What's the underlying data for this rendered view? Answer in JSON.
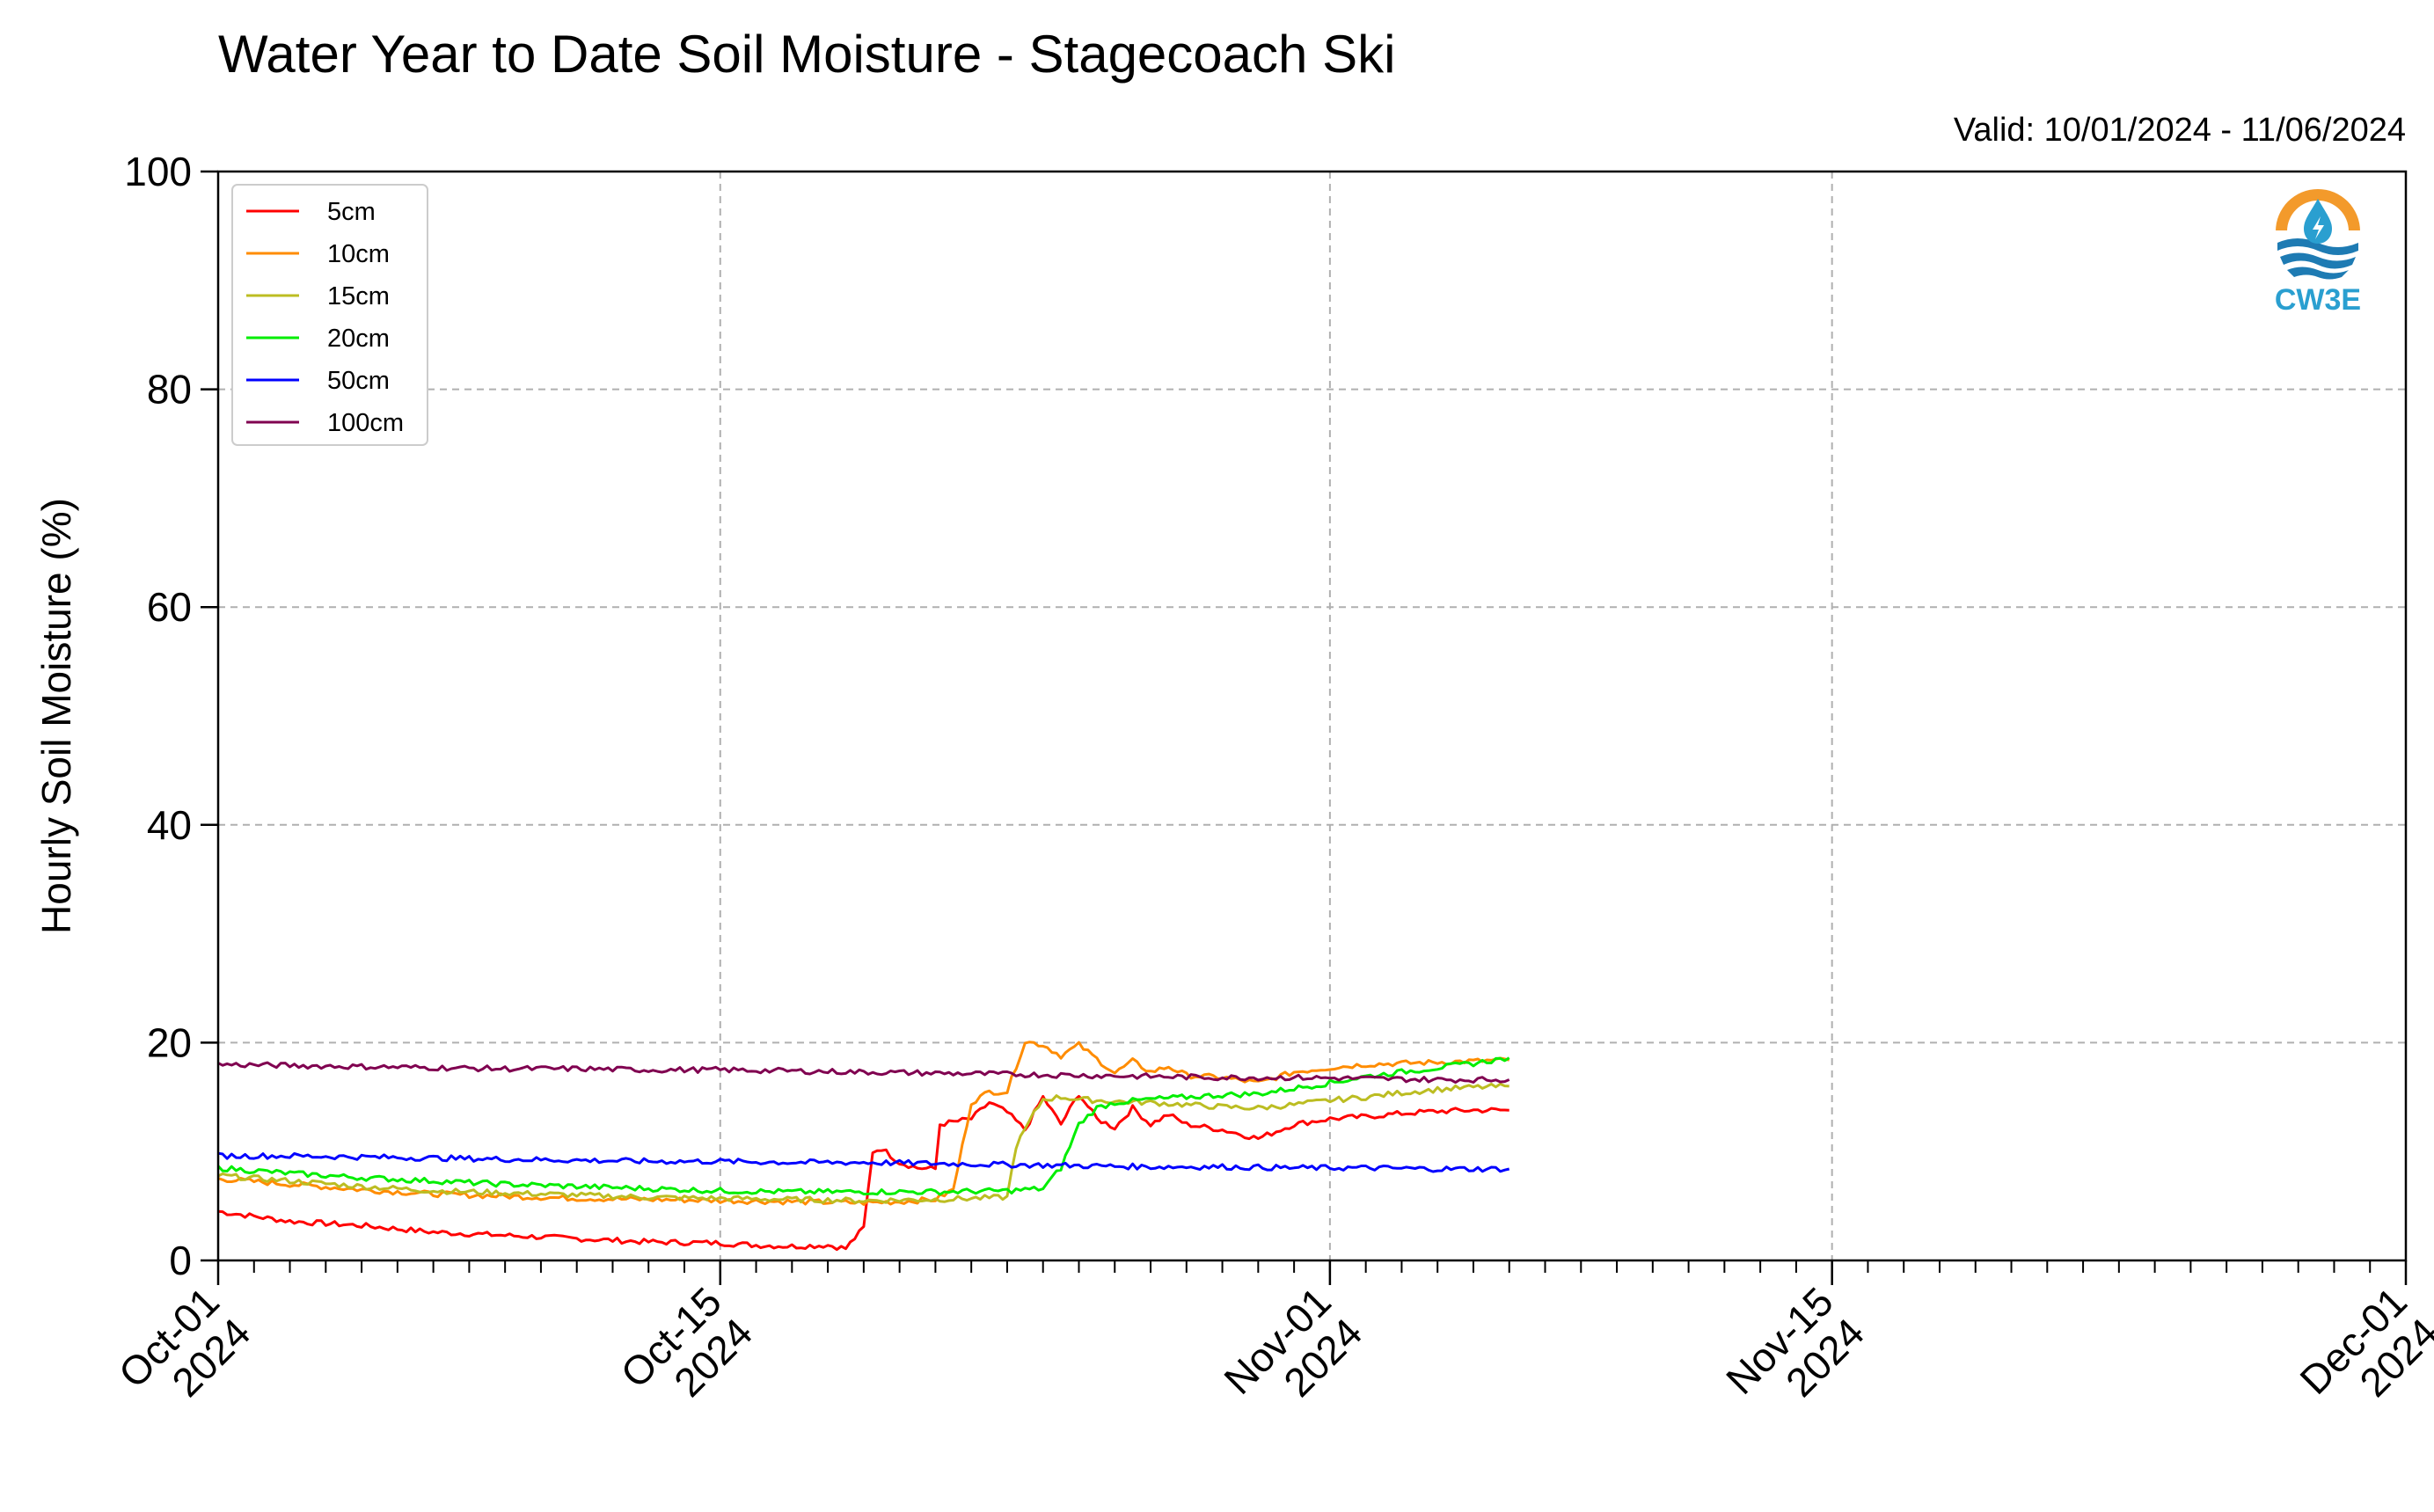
{
  "chart_data": {
    "type": "line",
    "title": "Water Year to Date Soil Moisture - Stagecoach Ski",
    "subtitle": "Valid: 10/01/2024 - 11/06/2024",
    "ylabel": "Hourly Soil Moisture (%)",
    "xlabel": "",
    "ylim": [
      0,
      100
    ],
    "xlim": [
      "2024-10-01",
      "2024-12-01"
    ],
    "yticks": [
      0,
      20,
      40,
      60,
      80,
      100
    ],
    "xticks": [
      {
        "date": "2024-10-01",
        "label": [
          "Oct-01",
          "2024"
        ]
      },
      {
        "date": "2024-10-15",
        "label": [
          "Oct-15",
          "2024"
        ]
      },
      {
        "date": "2024-11-01",
        "label": [
          "Nov-01",
          "2024"
        ]
      },
      {
        "date": "2024-11-15",
        "label": [
          "Nov-15",
          "2024"
        ]
      },
      {
        "date": "2024-12-01",
        "label": [
          "Dec-01",
          "2024"
        ]
      }
    ],
    "grid": true,
    "legend_position": "top-left",
    "series": [
      {
        "name": "5cm",
        "color": "#ff0000",
        "points": [
          [
            "2024-10-01",
            4.5
          ],
          [
            "2024-10-03",
            3.6
          ],
          [
            "2024-10-05",
            3.2
          ],
          [
            "2024-10-07",
            2.6
          ],
          [
            "2024-10-09",
            2.3
          ],
          [
            "2024-10-11",
            2.0
          ],
          [
            "2024-10-13",
            1.7
          ],
          [
            "2024-10-15",
            1.6
          ],
          [
            "2024-10-16",
            1.4
          ],
          [
            "2024-10-17",
            1.3
          ],
          [
            "2024-10-18",
            1.4
          ],
          [
            "2024-10-18T12:00",
            1.1
          ],
          [
            "2024-10-19",
            3.0
          ],
          [
            "2024-10-19T06:00",
            10.0
          ],
          [
            "2024-10-19T12:00",
            10.3
          ],
          [
            "2024-10-20",
            9.0
          ],
          [
            "2024-10-20T12:00",
            8.5
          ],
          [
            "2024-10-21",
            8.4
          ],
          [
            "2024-10-21T03:00",
            12.5
          ],
          [
            "2024-10-22",
            13.0
          ],
          [
            "2024-10-22T12:00",
            14.5
          ],
          [
            "2024-10-23",
            13.6
          ],
          [
            "2024-10-23T12:00",
            12.0
          ],
          [
            "2024-10-24",
            15.0
          ],
          [
            "2024-10-24T12:00",
            12.5
          ],
          [
            "2024-10-25",
            15.3
          ],
          [
            "2024-10-25T12:00",
            13.0
          ],
          [
            "2024-10-26",
            12.2
          ],
          [
            "2024-10-26T12:00",
            14.0
          ],
          [
            "2024-10-27",
            12.5
          ],
          [
            "2024-10-27T12:00",
            13.4
          ],
          [
            "2024-10-28",
            12.5
          ],
          [
            "2024-10-29",
            12.0
          ],
          [
            "2024-10-30",
            11.2
          ],
          [
            "2024-10-31",
            12.5
          ],
          [
            "2024-11-01",
            13.0
          ],
          [
            "2024-11-02",
            13.2
          ],
          [
            "2024-11-03",
            13.5
          ],
          [
            "2024-11-04",
            13.7
          ],
          [
            "2024-11-05",
            13.8
          ],
          [
            "2024-11-06",
            13.8
          ]
        ]
      },
      {
        "name": "10cm",
        "color": "#ff8c00",
        "points": [
          [
            "2024-10-01",
            7.5
          ],
          [
            "2024-10-03",
            7.0
          ],
          [
            "2024-10-05",
            6.5
          ],
          [
            "2024-10-07",
            6.1
          ],
          [
            "2024-10-09",
            5.9
          ],
          [
            "2024-10-11",
            5.7
          ],
          [
            "2024-10-13",
            5.6
          ],
          [
            "2024-10-15",
            5.5
          ],
          [
            "2024-10-17",
            5.4
          ],
          [
            "2024-10-19",
            5.3
          ],
          [
            "2024-10-20",
            5.4
          ],
          [
            "2024-10-21",
            5.6
          ],
          [
            "2024-10-21T12:00",
            6.5
          ],
          [
            "2024-10-22",
            14.5
          ],
          [
            "2024-10-22T12:00",
            15.5
          ],
          [
            "2024-10-23",
            15.5
          ],
          [
            "2024-10-23T12:00",
            20.1
          ],
          [
            "2024-10-24",
            19.8
          ],
          [
            "2024-10-24T12:00",
            18.8
          ],
          [
            "2024-10-25",
            19.8
          ],
          [
            "2024-10-25T12:00",
            18.5
          ],
          [
            "2024-10-26",
            17.2
          ],
          [
            "2024-10-26T12:00",
            18.3
          ],
          [
            "2024-10-27",
            17.3
          ],
          [
            "2024-10-27T12:00",
            17.8
          ],
          [
            "2024-10-28",
            17.0
          ],
          [
            "2024-10-29",
            16.8
          ],
          [
            "2024-10-30",
            16.3
          ],
          [
            "2024-10-31",
            17.3
          ],
          [
            "2024-11-01",
            17.7
          ],
          [
            "2024-11-02",
            18.0
          ],
          [
            "2024-11-03",
            18.1
          ],
          [
            "2024-11-04",
            18.2
          ],
          [
            "2024-11-05",
            18.3
          ],
          [
            "2024-11-06",
            18.4
          ]
        ]
      },
      {
        "name": "15cm",
        "color": "#bcbd22",
        "points": [
          [
            "2024-10-01",
            7.8
          ],
          [
            "2024-10-03",
            7.3
          ],
          [
            "2024-10-05",
            6.8
          ],
          [
            "2024-10-07",
            6.4
          ],
          [
            "2024-10-09",
            6.2
          ],
          [
            "2024-10-11",
            6.0
          ],
          [
            "2024-10-13",
            5.8
          ],
          [
            "2024-10-15",
            5.7
          ],
          [
            "2024-10-17",
            5.6
          ],
          [
            "2024-10-19",
            5.5
          ],
          [
            "2024-10-21",
            5.6
          ],
          [
            "2024-10-22",
            5.7
          ],
          [
            "2024-10-23",
            5.8
          ],
          [
            "2024-10-23T06:00",
            10.5
          ],
          [
            "2024-10-23T18:00",
            13.5
          ],
          [
            "2024-10-24",
            14.8
          ],
          [
            "2024-10-24T12:00",
            15.0
          ],
          [
            "2024-10-25",
            14.8
          ],
          [
            "2024-10-26",
            14.6
          ],
          [
            "2024-10-27",
            14.5
          ],
          [
            "2024-10-28",
            14.3
          ],
          [
            "2024-10-29",
            14.1
          ],
          [
            "2024-10-30",
            14.0
          ],
          [
            "2024-10-31",
            14.3
          ],
          [
            "2024-11-01",
            14.7
          ],
          [
            "2024-11-02",
            15.0
          ],
          [
            "2024-11-03",
            15.4
          ],
          [
            "2024-11-04",
            15.7
          ],
          [
            "2024-11-05",
            15.9
          ],
          [
            "2024-11-06",
            16.0
          ]
        ]
      },
      {
        "name": "20cm",
        "color": "#00ee00",
        "points": [
          [
            "2024-10-01",
            8.5
          ],
          [
            "2024-10-03",
            8.0
          ],
          [
            "2024-10-05",
            7.6
          ],
          [
            "2024-10-07",
            7.3
          ],
          [
            "2024-10-09",
            7.0
          ],
          [
            "2024-10-11",
            6.8
          ],
          [
            "2024-10-13",
            6.6
          ],
          [
            "2024-10-15",
            6.4
          ],
          [
            "2024-10-17",
            6.3
          ],
          [
            "2024-10-19",
            6.3
          ],
          [
            "2024-10-21",
            6.3
          ],
          [
            "2024-10-23",
            6.4
          ],
          [
            "2024-10-24",
            6.6
          ],
          [
            "2024-10-24T12:00",
            8.5
          ],
          [
            "2024-10-25",
            12.5
          ],
          [
            "2024-10-25T12:00",
            14.0
          ],
          [
            "2024-10-26",
            14.5
          ],
          [
            "2024-10-27",
            14.8
          ],
          [
            "2024-10-28",
            15.0
          ],
          [
            "2024-10-29",
            15.2
          ],
          [
            "2024-10-30",
            15.3
          ],
          [
            "2024-10-31",
            15.8
          ],
          [
            "2024-11-01",
            16.3
          ],
          [
            "2024-11-02",
            16.9
          ],
          [
            "2024-11-03",
            17.3
          ],
          [
            "2024-11-04",
            17.7
          ],
          [
            "2024-11-05",
            18.1
          ],
          [
            "2024-11-06",
            18.6
          ]
        ]
      },
      {
        "name": "50cm",
        "color": "#0000ff",
        "points": [
          [
            "2024-10-01",
            9.6
          ],
          [
            "2024-10-03",
            9.6
          ],
          [
            "2024-10-05",
            9.5
          ],
          [
            "2024-10-07",
            9.4
          ],
          [
            "2024-10-09",
            9.3
          ],
          [
            "2024-10-11",
            9.2
          ],
          [
            "2024-10-13",
            9.1
          ],
          [
            "2024-10-15",
            9.1
          ],
          [
            "2024-10-17",
            9.0
          ],
          [
            "2024-10-19",
            9.0
          ],
          [
            "2024-10-21",
            8.9
          ],
          [
            "2024-10-23",
            8.8
          ],
          [
            "2024-10-25",
            8.7
          ],
          [
            "2024-10-27",
            8.6
          ],
          [
            "2024-10-29",
            8.6
          ],
          [
            "2024-10-31",
            8.5
          ],
          [
            "2024-11-02",
            8.5
          ],
          [
            "2024-11-04",
            8.4
          ],
          [
            "2024-11-06",
            8.4
          ]
        ]
      },
      {
        "name": "100cm",
        "color": "#800050",
        "points": [
          [
            "2024-10-01",
            18.0
          ],
          [
            "2024-10-03",
            17.9
          ],
          [
            "2024-10-05",
            17.8
          ],
          [
            "2024-10-07",
            17.7
          ],
          [
            "2024-10-09",
            17.6
          ],
          [
            "2024-10-11",
            17.6
          ],
          [
            "2024-10-13",
            17.5
          ],
          [
            "2024-10-15",
            17.5
          ],
          [
            "2024-10-17",
            17.4
          ],
          [
            "2024-10-19",
            17.3
          ],
          [
            "2024-10-21",
            17.2
          ],
          [
            "2024-10-23",
            17.1
          ],
          [
            "2024-10-25",
            17.0
          ],
          [
            "2024-10-27",
            16.9
          ],
          [
            "2024-10-29",
            16.8
          ],
          [
            "2024-10-31",
            16.8
          ],
          [
            "2024-11-02",
            16.7
          ],
          [
            "2024-11-04",
            16.6
          ],
          [
            "2024-11-06",
            16.6
          ]
        ]
      }
    ]
  },
  "logo": {
    "text": "CW3E",
    "ring_color": "#f39a2b",
    "drop_color": "#2a9fd0",
    "wave_color": "#1e7bb3"
  }
}
